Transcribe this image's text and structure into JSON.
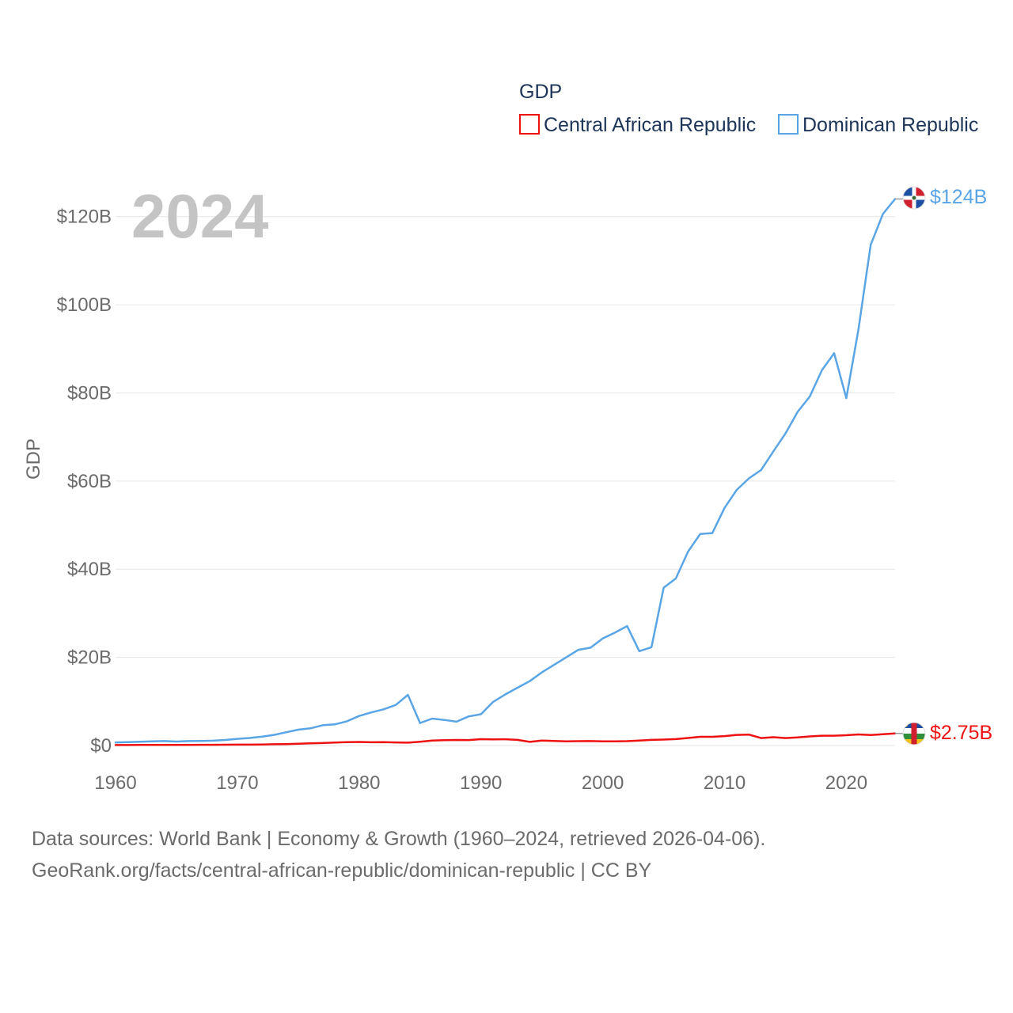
{
  "colors": {
    "central_african_republic": "#ee1111",
    "dominican_republic": "#5aa5e6",
    "grid": "#e6e6e6",
    "year_watermark": "#c4c4c4"
  },
  "year_watermark": "2024",
  "legend": {
    "title": "GDP",
    "items": [
      "Central African Republic",
      "Dominican Republic"
    ]
  },
  "end_labels": {
    "dominican_republic": "$124B",
    "central_african_republic": "$2.75B"
  },
  "flags": {
    "dominican_republic": "dominican-republic-flag-icon",
    "central_african_republic": "central-african-republic-flag-icon"
  },
  "footer": {
    "line1": "Data sources: World Bank | Economy & Growth (1960–2024, retrieved 2026-04-06).",
    "line2": "GeoRank.org/facts/central-african-republic/dominican-republic | CC BY"
  },
  "chart_data": {
    "type": "line",
    "title": "GDP",
    "xlabel": "",
    "ylabel": "GDP",
    "xlim": [
      1960,
      2024
    ],
    "ylim": [
      0,
      130
    ],
    "grid": true,
    "legend_position": "top-right",
    "x_ticks": [
      1960,
      1970,
      1980,
      1990,
      2000,
      2010,
      2020
    ],
    "x_tick_labels": [
      "1960",
      "1970",
      "1980",
      "1990",
      "2000",
      "2010",
      "2020"
    ],
    "y_ticks": [
      0,
      20,
      40,
      60,
      80,
      100,
      120
    ],
    "y_tick_labels": [
      "$0",
      "$20B",
      "$40B",
      "$60B",
      "$80B",
      "$100B",
      "$120B"
    ],
    "value_unit": "billions USD",
    "x": [
      1960,
      1961,
      1962,
      1963,
      1964,
      1965,
      1966,
      1967,
      1968,
      1969,
      1970,
      1971,
      1972,
      1973,
      1974,
      1975,
      1976,
      1977,
      1978,
      1979,
      1980,
      1981,
      1982,
      1983,
      1984,
      1985,
      1986,
      1987,
      1988,
      1989,
      1990,
      1991,
      1992,
      1993,
      1994,
      1995,
      1996,
      1997,
      1998,
      1999,
      2000,
      2001,
      2002,
      2003,
      2004,
      2005,
      2006,
      2007,
      2008,
      2009,
      2010,
      2011,
      2012,
      2013,
      2014,
      2015,
      2016,
      2017,
      2018,
      2019,
      2020,
      2021,
      2022,
      2023,
      2024
    ],
    "series": [
      {
        "name": "Dominican Republic",
        "values": [
          0.7,
          0.75,
          0.85,
          0.95,
          1.0,
          0.9,
          1.0,
          1.05,
          1.1,
          1.25,
          1.5,
          1.7,
          2.0,
          2.4,
          3.0,
          3.6,
          3.9,
          4.6,
          4.8,
          5.5,
          6.7,
          7.5,
          8.2,
          9.2,
          11.5,
          5.1,
          6.1,
          5.8,
          5.4,
          6.6,
          7.1,
          9.9,
          11.6,
          13.1,
          14.6,
          16.6,
          18.3,
          20.0,
          21.7,
          22.2,
          24.3,
          25.6,
          27.1,
          21.4,
          22.3,
          35.8,
          37.9,
          44.0,
          48.0,
          48.2,
          53.9,
          58.0,
          60.6,
          62.5,
          66.7,
          70.8,
          75.7,
          79.2,
          85.2,
          89.0,
          78.8,
          94.5,
          113.6,
          120.6,
          124.0
        ]
      },
      {
        "name": "Central African Republic",
        "values": [
          0.11,
          0.11,
          0.12,
          0.12,
          0.13,
          0.14,
          0.15,
          0.16,
          0.17,
          0.18,
          0.19,
          0.2,
          0.23,
          0.28,
          0.32,
          0.42,
          0.49,
          0.56,
          0.66,
          0.77,
          0.8,
          0.73,
          0.75,
          0.7,
          0.65,
          0.86,
          1.12,
          1.2,
          1.25,
          1.24,
          1.44,
          1.38,
          1.42,
          1.27,
          0.83,
          1.12,
          1.02,
          0.94,
          0.99,
          1.0,
          0.94,
          0.95,
          0.99,
          1.14,
          1.27,
          1.35,
          1.46,
          1.7,
          1.98,
          1.98,
          2.14,
          2.41,
          2.48,
          1.69,
          1.89,
          1.69,
          1.83,
          2.07,
          2.22,
          2.22,
          2.33,
          2.52,
          2.39,
          2.56,
          2.75
        ]
      }
    ]
  }
}
